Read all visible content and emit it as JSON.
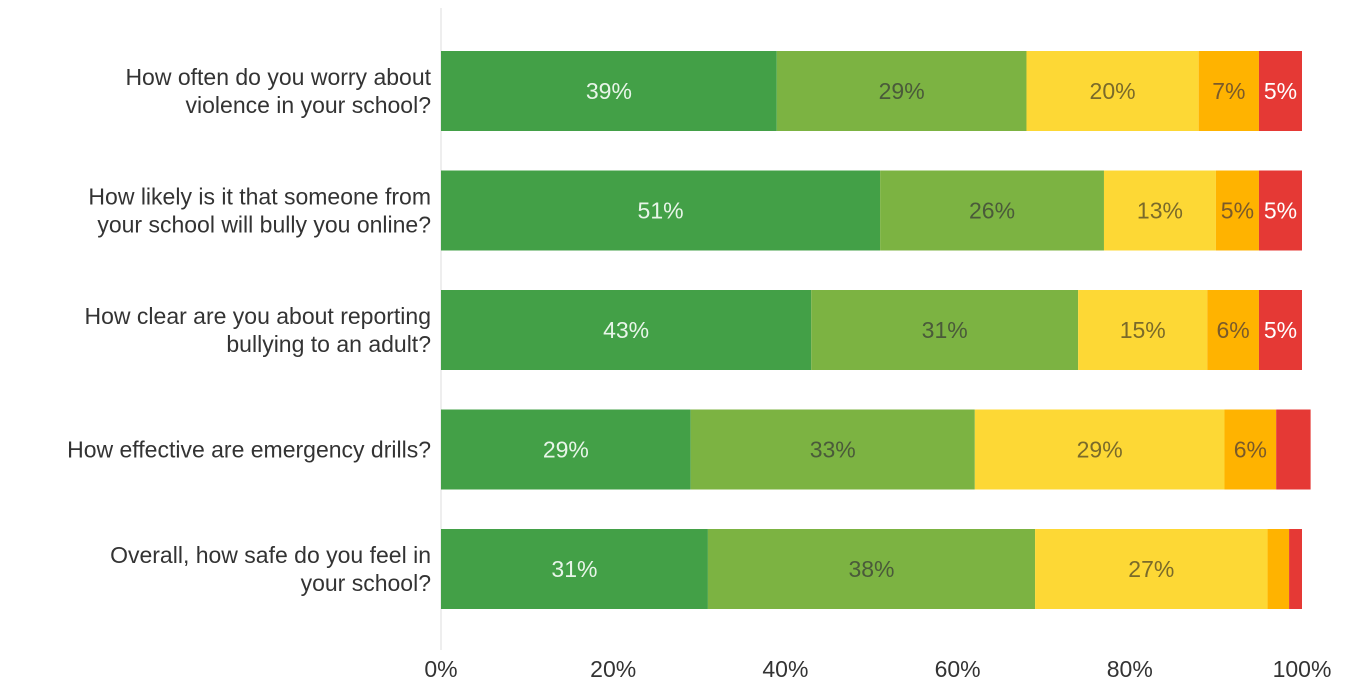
{
  "chart_data": {
    "type": "bar",
    "orientation": "horizontal",
    "stacked": true,
    "categories": [
      [
        "How often do you worry about",
        "violence in your school?"
      ],
      [
        "How likely is it that someone from",
        "your school will bully you online?"
      ],
      [
        "How clear are you about reporting",
        "bullying to an adult?"
      ],
      [
        "How effective are emergency drills?"
      ],
      [
        "Overall, how safe do you feel in",
        "your school?"
      ]
    ],
    "series": [
      {
        "color": "#43a047",
        "label_color": "#e8f5e9",
        "values": [
          39,
          51,
          43,
          29,
          31
        ],
        "labels": [
          "39%",
          "51%",
          "43%",
          "29%",
          "31%"
        ]
      },
      {
        "color": "#7cb342",
        "label_color": "#4a5a3a",
        "values": [
          29,
          26,
          31,
          33,
          38
        ],
        "labels": [
          "29%",
          "26%",
          "31%",
          "33%",
          "38%"
        ]
      },
      {
        "color": "#fdd835",
        "label_color": "#7a6a2a",
        "values": [
          20,
          13,
          15,
          29,
          27
        ],
        "labels": [
          "20%",
          "13%",
          "15%",
          "29%",
          "27%"
        ]
      },
      {
        "color": "#ffb300",
        "label_color": "#7a5a2a",
        "values": [
          7,
          5,
          6,
          6,
          2.5
        ],
        "labels": [
          "7%",
          "5%",
          "6%",
          "6%",
          ""
        ]
      },
      {
        "color": "#e53935",
        "label_color": "#ffffff",
        "values": [
          5,
          5,
          5,
          4,
          1.5
        ],
        "labels": [
          "5%",
          "5%",
          "5%",
          "",
          ""
        ]
      }
    ],
    "xlim": [
      0,
      100
    ],
    "xticks": [
      "0%",
      "20%",
      "40%",
      "60%",
      "80%",
      "100%"
    ],
    "title": "",
    "xlabel": "",
    "ylabel": "",
    "grid": false,
    "legend": "none"
  }
}
